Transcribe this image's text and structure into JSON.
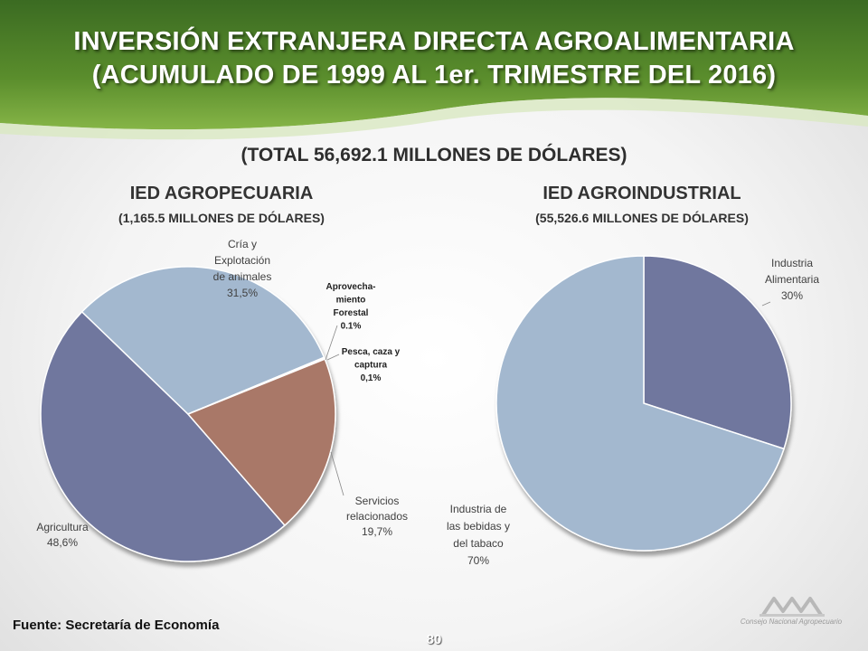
{
  "header": {
    "title_line1": "INVERSIÓN EXTRANJERA DIRECTA AGROALIMENTARIA",
    "title_line2": "(ACUMULADO DE 1999 AL 1er. TRIMESTRE DEL 2016)",
    "total": "(TOTAL 56,692.1 MILLONES DE DÓLARES)"
  },
  "colors": {
    "banner_dark": "#2f5f1c",
    "banner_light": "#7dad3e",
    "slate_blue": "#6f779e",
    "light_blue": "#a3b8cf",
    "terracotta": "#a97868"
  },
  "chart_data": [
    {
      "type": "pie",
      "title": "IED AGROPECUARIA",
      "subtitle": "(1,165.5 MILLONES DE DÓLARES)",
      "slices": [
        {
          "label": "Agricultura",
          "value": 48.6,
          "value_label": "48,6%",
          "color": "#6f779e"
        },
        {
          "label": "Cría y Explotación de animales",
          "value": 31.5,
          "value_label": "31,5%",
          "color": "#a3b8cf"
        },
        {
          "label": "Aprovecha- miento Forestal",
          "value": 0.1,
          "value_label": "0.1%",
          "color": "#8fa7c2"
        },
        {
          "label": "Pesca, caza y captura",
          "value": 0.1,
          "value_label": "0,1%",
          "color": "#c9d3e0"
        },
        {
          "label": "Servicios relacionados",
          "value": 19.7,
          "value_label": "19,7%",
          "color": "#a97868"
        }
      ]
    },
    {
      "type": "pie",
      "title": "IED AGROINDUSTRIAL",
      "subtitle": "(55,526.6 MILLONES DE DÓLARES)",
      "slices": [
        {
          "label": "Industria Alimentaria",
          "value": 30,
          "value_label": "30%",
          "color": "#6f779e"
        },
        {
          "label": "Industria de las bebidas y del tabaco",
          "value": 70,
          "value_label": "70%",
          "color": "#a3b8cf"
        }
      ]
    }
  ],
  "footer": {
    "source": "Fuente: Secretaría de Economía",
    "page_number": "80",
    "logo_text": "Consejo Nacional Agropecuario"
  }
}
